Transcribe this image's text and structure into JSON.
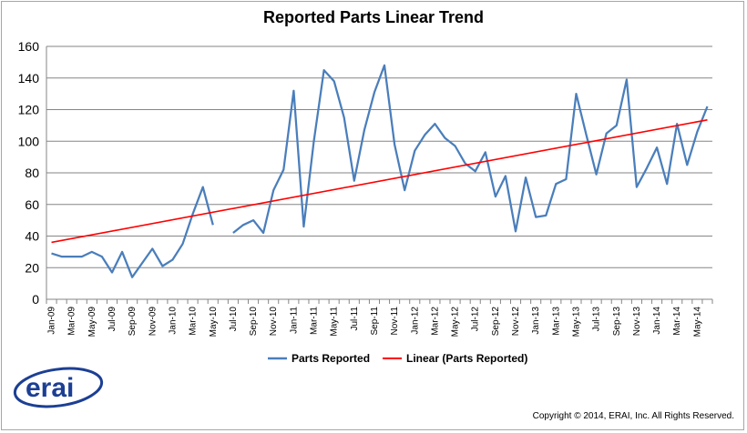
{
  "chart_data": {
    "type": "line",
    "title": "Reported Parts Linear Trend",
    "xlabel": "",
    "ylabel": "",
    "ylim": [
      0,
      160
    ],
    "yticks": [
      0,
      20,
      40,
      60,
      80,
      100,
      120,
      140,
      160
    ],
    "grid": true,
    "legend_position": "bottom",
    "x_tick_labels": [
      "Jan-09",
      "Mar-09",
      "May-09",
      "Jul-09",
      "Sep-09",
      "Nov-09",
      "Jan-10",
      "Mar-10",
      "May-10",
      "Jul-10",
      "Sep-10",
      "Nov-10",
      "Jan-11",
      "Mar-11",
      "May-11",
      "Jul-11",
      "Sep-11",
      "Nov-11",
      "Jan-12",
      "Mar-12",
      "May-12",
      "Jul-12",
      "Sep-12",
      "Nov-12",
      "Jan-13",
      "Mar-13",
      "May-13",
      "Jul-13",
      "Sep-13",
      "Nov-13",
      "Jan-14",
      "Mar-14",
      "May-14"
    ],
    "categories": [
      "Jan-09",
      "Feb-09",
      "Mar-09",
      "Apr-09",
      "May-09",
      "Jun-09",
      "Jul-09",
      "Aug-09",
      "Sep-09",
      "Oct-09",
      "Nov-09",
      "Dec-09",
      "Jan-10",
      "Feb-10",
      "Mar-10",
      "Apr-10",
      "May-10",
      "Jun-10",
      "Jul-10",
      "Aug-10",
      "Sep-10",
      "Oct-10",
      "Nov-10",
      "Dec-10",
      "Jan-11",
      "Feb-11",
      "Mar-11",
      "Apr-11",
      "May-11",
      "Jun-11",
      "Jul-11",
      "Aug-11",
      "Sep-11",
      "Oct-11",
      "Nov-11",
      "Dec-11",
      "Jan-12",
      "Feb-12",
      "Mar-12",
      "Apr-12",
      "May-12",
      "Jun-12",
      "Jul-12",
      "Aug-12",
      "Sep-12",
      "Oct-12",
      "Nov-12",
      "Dec-12",
      "Jan-13",
      "Feb-13",
      "Mar-13",
      "Apr-13",
      "May-13",
      "Jun-13",
      "Jul-13",
      "Aug-13",
      "Sep-13",
      "Oct-13",
      "Nov-13",
      "Dec-13",
      "Jan-14",
      "Feb-14",
      "Mar-14",
      "Apr-14",
      "May-14",
      "Jun-14"
    ],
    "series": [
      {
        "name": "Parts Reported",
        "color": "#4a7ebb",
        "values": [
          29,
          27,
          27,
          27,
          30,
          27,
          17,
          30,
          14,
          23,
          32,
          21,
          25,
          35,
          54,
          71,
          47,
          null,
          42,
          47,
          50,
          42,
          69,
          82,
          132,
          46,
          100,
          145,
          138,
          115,
          75,
          107,
          131,
          148,
          98,
          69,
          94,
          104,
          111,
          102,
          97,
          86,
          81,
          93,
          65,
          78,
          43,
          77,
          52,
          53,
          73,
          76,
          130,
          104,
          79,
          105,
          110,
          139,
          71,
          83,
          96,
          73,
          111,
          85,
          106,
          122
        ]
      },
      {
        "name": "Linear (Parts Reported)",
        "color": "#ff0000",
        "trendline": true,
        "start": 36,
        "end": 113.5
      }
    ]
  },
  "copyright": "Copyright © 2014, ERAI, Inc.  All Rights Reserved.",
  "logo_text": "erai"
}
